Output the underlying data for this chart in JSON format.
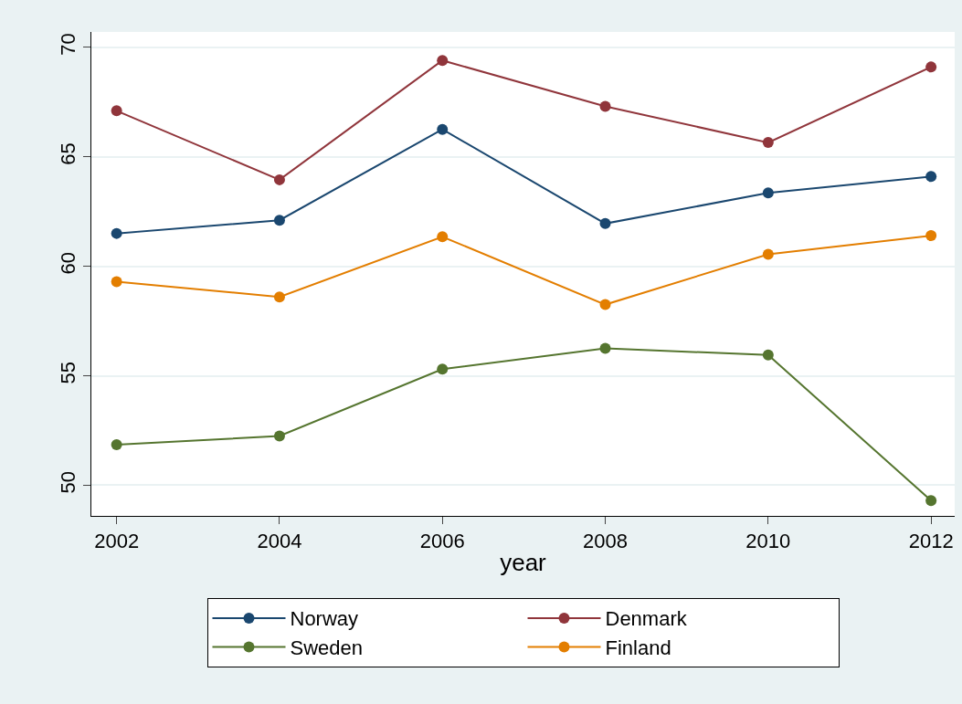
{
  "chart_data": {
    "type": "line",
    "xlabel": "year",
    "x": [
      2002,
      2004,
      2006,
      2008,
      2010,
      2012
    ],
    "series": [
      {
        "name": "Norway",
        "color": "#1a476f",
        "values": [
          61.5,
          62.1,
          66.25,
          61.95,
          63.35,
          64.1
        ]
      },
      {
        "name": "Denmark",
        "color": "#90353b",
        "values": [
          67.1,
          63.95,
          69.4,
          67.3,
          65.65,
          69.1
        ]
      },
      {
        "name": "Sweden",
        "color": "#55752f",
        "values": [
          51.85,
          52.25,
          55.3,
          56.25,
          55.95,
          49.3
        ]
      },
      {
        "name": "Finland",
        "color": "#e37e00",
        "values": [
          59.3,
          58.6,
          61.35,
          58.25,
          60.55,
          61.4
        ]
      }
    ],
    "xlim": [
      2001.69,
      2012.29
    ],
    "xticks": [
      2002,
      2004,
      2006,
      2008,
      2010,
      2012
    ],
    "ylim": [
      48.6,
      70.7
    ],
    "yticks": [
      50,
      55,
      60,
      65,
      70
    ],
    "grid": "y",
    "legend": "bottom",
    "marker": "circle",
    "line_style": "solid"
  }
}
